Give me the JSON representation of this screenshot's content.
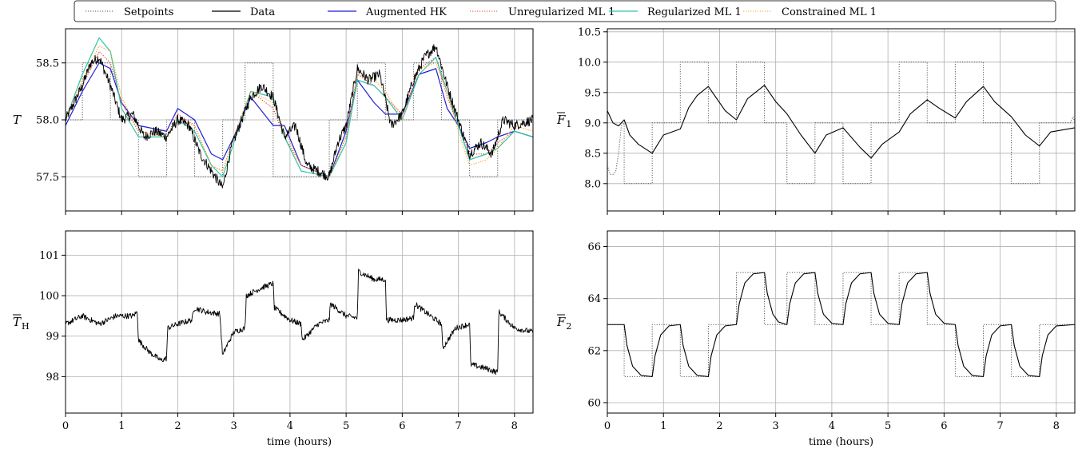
{
  "legend": {
    "placement": "top",
    "entries": [
      {
        "name": "Setpoints",
        "color": "#555555",
        "dash": "dotted"
      },
      {
        "name": "Data",
        "color": "#000000",
        "dash": "solid"
      },
      {
        "name": "Augmented HK",
        "color": "#1f1fd6",
        "dash": "solid"
      },
      {
        "name": "Unregularized ML 1",
        "color": "#e8403a",
        "dash": "dotted"
      },
      {
        "name": "Regularized ML 1",
        "color": "#2ec4a6",
        "dash": "solid"
      },
      {
        "name": "Constrained ML 1",
        "color": "#f5a623",
        "dash": "dotted"
      }
    ]
  },
  "chart_data": [
    {
      "id": "T",
      "type": "line",
      "ylabel": "T",
      "ylabel_sub": "",
      "ylabel_bar": false,
      "xlabel": "",
      "xlim": [
        0,
        8.33
      ],
      "ylim": [
        57.2,
        58.8
      ],
      "xticks": [
        0,
        1,
        2,
        3,
        4,
        5,
        6,
        7,
        8
      ],
      "show_xtick_labels": false,
      "yticks": [
        57.5,
        58.0,
        58.5
      ],
      "ytick_labels": [
        "57.5",
        "58.0",
        "58.5"
      ],
      "grid": true,
      "noise": 0.045,
      "setpoints": {
        "x": [
          0,
          0.3,
          0.3,
          0.8,
          0.8,
          1.3,
          1.3,
          1.8,
          1.8,
          2.3,
          2.3,
          2.8,
          2.8,
          3.2,
          3.2,
          3.7,
          3.7,
          4.2,
          4.2,
          4.7,
          4.7,
          5.2,
          5.2,
          5.7,
          5.7,
          6.2,
          6.2,
          6.7,
          6.7,
          7.2,
          7.2,
          7.7,
          7.7,
          8.33
        ],
        "y": [
          58.0,
          58.0,
          58.5,
          58.5,
          58.0,
          58.0,
          57.5,
          57.5,
          58.0,
          58.0,
          57.5,
          57.5,
          58.0,
          58.0,
          58.5,
          58.5,
          57.5,
          57.5,
          57.5,
          57.5,
          58.0,
          58.0,
          58.5,
          58.5,
          58.0,
          58.0,
          58.5,
          58.5,
          58.0,
          58.0,
          57.5,
          57.5,
          58.0,
          58.0
        ]
      },
      "data": {
        "x": [
          0,
          0.15,
          0.3,
          0.45,
          0.6,
          0.8,
          1.0,
          1.2,
          1.4,
          1.6,
          1.8,
          2.0,
          2.2,
          2.4,
          2.6,
          2.8,
          2.95,
          3.1,
          3.3,
          3.5,
          3.7,
          3.9,
          4.1,
          4.3,
          4.5,
          4.7,
          4.85,
          5.0,
          5.2,
          5.4,
          5.6,
          5.8,
          6.0,
          6.2,
          6.4,
          6.6,
          6.8,
          7.0,
          7.2,
          7.4,
          7.6,
          7.8,
          8.0,
          8.33
        ],
        "y": [
          58.0,
          58.15,
          58.3,
          58.5,
          58.55,
          58.3,
          58.0,
          58.05,
          57.85,
          57.9,
          57.85,
          58.0,
          57.95,
          57.7,
          57.55,
          57.4,
          57.75,
          57.95,
          58.2,
          58.3,
          58.2,
          57.85,
          57.95,
          57.6,
          57.55,
          57.5,
          57.8,
          57.95,
          58.45,
          58.35,
          58.4,
          57.95,
          58.05,
          58.35,
          58.55,
          58.65,
          58.3,
          58.0,
          57.7,
          57.8,
          57.7,
          58.0,
          57.95,
          58.0
        ]
      },
      "models": [
        {
          "name": "Augmented HK",
          "x": [
            0,
            0.3,
            0.6,
            0.8,
            1.0,
            1.3,
            1.8,
            2.0,
            2.3,
            2.6,
            2.8,
            3.0,
            3.3,
            3.7,
            3.9,
            4.2,
            4.7,
            5.0,
            5.2,
            5.5,
            5.7,
            6.0,
            6.3,
            6.6,
            6.8,
            7.0,
            7.2,
            7.5,
            7.7,
            8.0,
            8.33
          ],
          "y": [
            57.95,
            58.25,
            58.5,
            58.45,
            58.15,
            57.95,
            57.9,
            58.1,
            58.0,
            57.7,
            57.65,
            57.85,
            58.2,
            57.95,
            57.95,
            57.6,
            57.5,
            57.9,
            58.35,
            58.15,
            58.05,
            58.05,
            58.4,
            58.45,
            58.1,
            57.95,
            57.75,
            57.8,
            57.85,
            57.9,
            57.85
          ]
        },
        {
          "name": "Unregularized ML 1",
          "x": [
            0,
            0.3,
            0.6,
            0.8,
            1.0,
            1.3,
            1.8,
            2.0,
            2.3,
            2.6,
            2.8,
            3.0,
            3.3,
            3.7,
            3.9,
            4.2,
            4.7,
            5.0,
            5.2,
            5.5,
            5.7,
            6.0,
            6.3,
            6.6,
            6.8,
            7.0,
            7.2,
            7.5,
            7.7,
            8.0,
            8.33
          ],
          "y": [
            58.0,
            58.3,
            58.6,
            58.5,
            58.15,
            57.9,
            57.85,
            58.05,
            57.95,
            57.6,
            57.55,
            57.85,
            58.25,
            58.1,
            57.85,
            57.6,
            57.5,
            57.85,
            58.4,
            58.3,
            58.2,
            58.05,
            58.45,
            58.55,
            58.2,
            57.95,
            57.7,
            57.7,
            57.8,
            57.9,
            57.85
          ]
        },
        {
          "name": "Regularized ML 1",
          "x": [
            0,
            0.3,
            0.6,
            0.8,
            1.0,
            1.3,
            1.8,
            2.0,
            2.3,
            2.6,
            2.8,
            3.0,
            3.3,
            3.7,
            3.9,
            4.2,
            4.7,
            5.0,
            5.2,
            5.5,
            5.7,
            6.0,
            6.3,
            6.6,
            6.8,
            7.0,
            7.2,
            7.5,
            7.7,
            8.0,
            8.33
          ],
          "y": [
            58.0,
            58.4,
            58.72,
            58.6,
            58.1,
            57.85,
            57.85,
            58.0,
            57.9,
            57.6,
            57.5,
            57.8,
            58.25,
            58.2,
            57.85,
            57.55,
            57.5,
            57.8,
            58.35,
            58.3,
            58.2,
            58.0,
            58.4,
            58.55,
            58.25,
            57.95,
            57.65,
            57.7,
            57.75,
            57.9,
            57.85
          ]
        },
        {
          "name": "Constrained ML 1",
          "x": [
            0,
            0.3,
            0.6,
            0.8,
            1.0,
            1.3,
            1.8,
            2.0,
            2.3,
            2.6,
            2.8,
            3.0,
            3.3,
            3.7,
            3.9,
            4.2,
            4.7,
            5.0,
            5.2,
            5.5,
            5.7,
            6.0,
            6.3,
            6.6,
            6.8,
            7.0,
            7.2,
            7.5,
            7.7,
            8.0,
            8.33
          ],
          "y": [
            58.0,
            58.35,
            58.65,
            58.6,
            58.2,
            57.9,
            57.85,
            58.0,
            57.95,
            57.6,
            57.55,
            57.85,
            58.25,
            58.15,
            57.9,
            57.6,
            57.5,
            57.85,
            58.4,
            58.35,
            58.25,
            58.0,
            58.45,
            58.5,
            58.25,
            57.9,
            57.6,
            57.65,
            57.75,
            57.95,
            57.9
          ]
        }
      ]
    },
    {
      "id": "F1",
      "type": "line",
      "ylabel": "F",
      "ylabel_sub": "1",
      "ylabel_bar": true,
      "xlabel": "",
      "xlim": [
        0,
        8.33
      ],
      "ylim": [
        7.55,
        10.55
      ],
      "xticks": [
        0,
        1,
        2,
        3,
        4,
        5,
        6,
        7,
        8
      ],
      "show_xtick_labels": false,
      "yticks": [
        8.0,
        8.5,
        9.0,
        9.5,
        10.0,
        10.5
      ],
      "ytick_labels": [
        "8.0",
        "8.5",
        "9.0",
        "9.5",
        "10.0",
        "10.5"
      ],
      "grid": true,
      "noise": 0,
      "setpoints": {
        "x": [
          0,
          0.05,
          0.1,
          0.15,
          0.2,
          0.25,
          0.3,
          0.3,
          0.8,
          0.8,
          1.3,
          1.3,
          1.8,
          1.8,
          2.3,
          2.3,
          2.8,
          2.8,
          3.2,
          3.2,
          3.7,
          3.7,
          4.2,
          4.2,
          4.7,
          4.7,
          5.2,
          5.2,
          5.7,
          5.7,
          6.2,
          6.2,
          6.7,
          6.7,
          7.2,
          7.2,
          7.7,
          7.7,
          8.25,
          8.3,
          8.33
        ],
        "y": [
          8.3,
          8.15,
          8.15,
          8.2,
          8.5,
          8.95,
          9.0,
          8.0,
          8.0,
          9.0,
          9.0,
          10.0,
          10.0,
          9.0,
          9.0,
          10.0,
          10.0,
          9.0,
          9.0,
          8.0,
          8.0,
          9.0,
          9.0,
          8.0,
          8.0,
          9.0,
          9.0,
          10.0,
          10.0,
          9.0,
          9.0,
          10.0,
          10.0,
          9.0,
          9.0,
          8.0,
          8.0,
          9.0,
          9.0,
          9.1,
          9.0
        ]
      },
      "data": {
        "x": [
          0,
          0.1,
          0.2,
          0.3,
          0.4,
          0.55,
          0.8,
          1.0,
          1.3,
          1.45,
          1.6,
          1.8,
          1.95,
          2.1,
          2.3,
          2.5,
          2.8,
          3.0,
          3.2,
          3.45,
          3.7,
          3.9,
          4.2,
          4.5,
          4.7,
          4.9,
          5.2,
          5.4,
          5.7,
          5.9,
          6.2,
          6.4,
          6.7,
          6.9,
          7.2,
          7.45,
          7.7,
          7.9,
          8.33
        ],
        "y": [
          9.2,
          9.0,
          8.95,
          9.05,
          8.8,
          8.65,
          8.5,
          8.8,
          8.9,
          9.25,
          9.45,
          9.6,
          9.4,
          9.2,
          9.05,
          9.4,
          9.62,
          9.35,
          9.15,
          8.8,
          8.5,
          8.8,
          8.92,
          8.6,
          8.42,
          8.65,
          8.85,
          9.15,
          9.38,
          9.25,
          9.08,
          9.35,
          9.6,
          9.35,
          9.1,
          8.8,
          8.62,
          8.85,
          8.92
        ]
      },
      "models": []
    },
    {
      "id": "TH",
      "type": "line",
      "ylabel": "T",
      "ylabel_sub": "H",
      "ylabel_bar": true,
      "xlabel": "time (hours)",
      "xlim": [
        0,
        8.33
      ],
      "ylim": [
        97.1,
        101.6
      ],
      "xticks": [
        0,
        1,
        2,
        3,
        4,
        5,
        6,
        7,
        8
      ],
      "show_xtick_labels": true,
      "yticks": [
        98,
        99,
        100,
        101
      ],
      "ytick_labels": [
        "98",
        "99",
        "100",
        "101"
      ],
      "grid": true,
      "noise": 0.07,
      "setpoints": null,
      "data": {
        "x": [
          0,
          0.3,
          0.6,
          0.9,
          1.2,
          1.28,
          1.3,
          1.5,
          1.7,
          1.8,
          1.82,
          2.0,
          2.25,
          2.3,
          2.5,
          2.75,
          2.8,
          2.85,
          3.0,
          3.2,
          3.22,
          3.5,
          3.7,
          3.72,
          4.0,
          4.2,
          4.22,
          4.5,
          4.7,
          4.72,
          5.0,
          5.2,
          5.22,
          5.5,
          5.7,
          5.72,
          6.0,
          6.2,
          6.22,
          6.5,
          6.7,
          6.72,
          6.95,
          7.2,
          7.22,
          7.5,
          7.7,
          7.72,
          8.0,
          8.33
        ],
        "y": [
          99.3,
          99.5,
          99.3,
          99.5,
          99.5,
          99.6,
          98.9,
          98.6,
          98.4,
          98.45,
          99.2,
          99.3,
          99.4,
          99.7,
          99.6,
          99.55,
          98.5,
          98.7,
          99.1,
          99.2,
          100.0,
          100.2,
          100.3,
          99.7,
          99.4,
          99.3,
          98.9,
          99.3,
          99.4,
          99.8,
          99.5,
          99.45,
          100.6,
          100.4,
          100.4,
          99.4,
          99.4,
          99.45,
          99.8,
          99.5,
          99.3,
          98.7,
          99.2,
          99.3,
          98.3,
          98.2,
          98.1,
          99.6,
          99.2,
          99.1
        ]
      },
      "models": []
    },
    {
      "id": "F2",
      "type": "line",
      "ylabel": "F",
      "ylabel_sub": "2",
      "ylabel_bar": true,
      "xlabel": "time (hours)",
      "xlim": [
        0,
        8.33
      ],
      "ylim": [
        59.6,
        66.6
      ],
      "xticks": [
        0,
        1,
        2,
        3,
        4,
        5,
        6,
        7,
        8
      ],
      "show_xtick_labels": true,
      "yticks": [
        60,
        62,
        64,
        66
      ],
      "ytick_labels": [
        "60",
        "62",
        "64",
        "66"
      ],
      "grid": true,
      "noise": 0,
      "setpoints": {
        "x": [
          0,
          0.3,
          0.3,
          0.8,
          0.8,
          1.3,
          1.3,
          1.8,
          1.8,
          2.3,
          2.3,
          2.8,
          2.8,
          3.2,
          3.2,
          3.7,
          3.7,
          4.2,
          4.2,
          4.7,
          4.7,
          5.2,
          5.2,
          5.7,
          5.7,
          6.2,
          6.2,
          6.7,
          6.7,
          7.2,
          7.2,
          7.7,
          7.7,
          8.33
        ],
        "y": [
          63,
          63,
          61,
          61,
          63,
          63,
          61,
          61,
          63,
          63,
          65,
          65,
          63,
          63,
          65,
          65,
          63,
          63,
          65,
          65,
          63,
          63,
          65,
          65,
          63,
          63,
          61,
          61,
          63,
          63,
          61,
          61,
          63,
          63
        ]
      },
      "data": {
        "x": [
          0,
          0.3,
          0.35,
          0.45,
          0.6,
          0.8,
          0.85,
          0.95,
          1.1,
          1.3,
          1.35,
          1.45,
          1.6,
          1.8,
          1.85,
          1.95,
          2.1,
          2.3,
          2.35,
          2.45,
          2.6,
          2.8,
          2.85,
          2.95,
          3.05,
          3.2,
          3.25,
          3.35,
          3.5,
          3.7,
          3.75,
          3.85,
          4.0,
          4.2,
          4.25,
          4.35,
          4.5,
          4.7,
          4.75,
          4.85,
          5.0,
          5.2,
          5.25,
          5.35,
          5.5,
          5.7,
          5.75,
          5.85,
          6.0,
          6.2,
          6.25,
          6.35,
          6.5,
          6.7,
          6.75,
          6.85,
          7.0,
          7.2,
          7.25,
          7.35,
          7.5,
          7.7,
          7.75,
          7.85,
          8.0,
          8.33
        ],
        "y": [
          63,
          63,
          62.2,
          61.4,
          61.05,
          61.0,
          61.8,
          62.6,
          62.95,
          63.0,
          62.2,
          61.4,
          61.05,
          61.0,
          61.8,
          62.6,
          62.95,
          63.0,
          63.8,
          64.6,
          64.95,
          65.0,
          64.2,
          63.4,
          63.1,
          63.0,
          63.8,
          64.6,
          64.95,
          65.0,
          64.2,
          63.4,
          63.05,
          63.0,
          63.8,
          64.6,
          64.95,
          65.0,
          64.2,
          63.4,
          63.05,
          63.0,
          63.8,
          64.6,
          64.95,
          65.0,
          64.2,
          63.4,
          63.05,
          63.0,
          62.2,
          61.4,
          61.05,
          61.0,
          61.8,
          62.6,
          62.95,
          63.0,
          62.2,
          61.4,
          61.05,
          61.0,
          61.8,
          62.6,
          62.95,
          63.0
        ]
      },
      "models": []
    }
  ]
}
